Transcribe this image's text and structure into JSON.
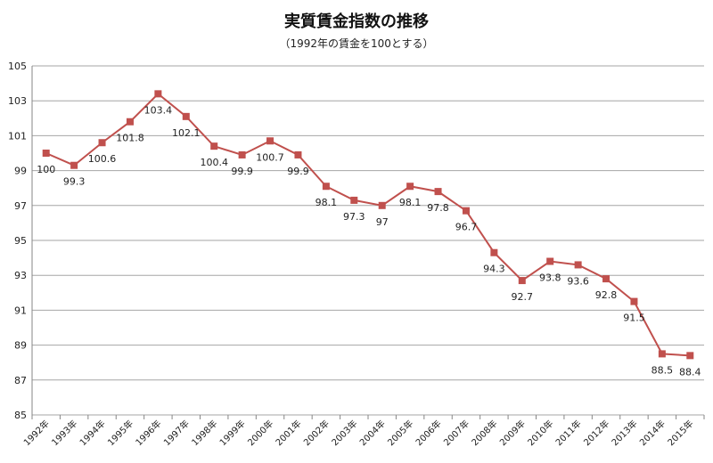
{
  "chart_data": {
    "type": "line",
    "title": "実質賃金指数の推移",
    "subtitle": "（1992年の賃金を100とする）",
    "categories": [
      "1992年",
      "1993年",
      "1994年",
      "1995年",
      "1996年",
      "1997年",
      "1998年",
      "1999年",
      "2000年",
      "2001年",
      "2002年",
      "2003年",
      "2004年",
      "2005年",
      "2006年",
      "2007年",
      "2008年",
      "2009年",
      "2010年",
      "2011年",
      "2012年",
      "2013年",
      "2014年",
      "2015年"
    ],
    "series": [
      {
        "values": [
          100,
          99.3,
          100.6,
          101.8,
          103.4,
          102.1,
          100.4,
          99.9,
          100.7,
          99.9,
          98.1,
          97.3,
          97,
          98.1,
          97.8,
          96.7,
          94.3,
          92.7,
          93.8,
          93.6,
          92.8,
          91.5,
          88.5,
          88.4
        ],
        "labels": [
          "100",
          "99.3",
          "100.6",
          "101.8",
          "103.4",
          "102.1",
          "100.4",
          "99.9",
          "100.7",
          "99.9",
          "98.1",
          "97.3",
          "97",
          "98.1",
          "97.8",
          "96.7",
          "94.3",
          "92.7",
          "93.8",
          "93.6",
          "92.8",
          "91.5",
          "88.5",
          "88.4"
        ],
        "color": "#C0504D"
      }
    ],
    "ylim": [
      85,
      105
    ],
    "yticks": [
      "85",
      "87",
      "89",
      "91",
      "93",
      "95",
      "97",
      "99",
      "101",
      "103",
      "105"
    ],
    "grid": true,
    "xlabel": "",
    "ylabel": ""
  }
}
